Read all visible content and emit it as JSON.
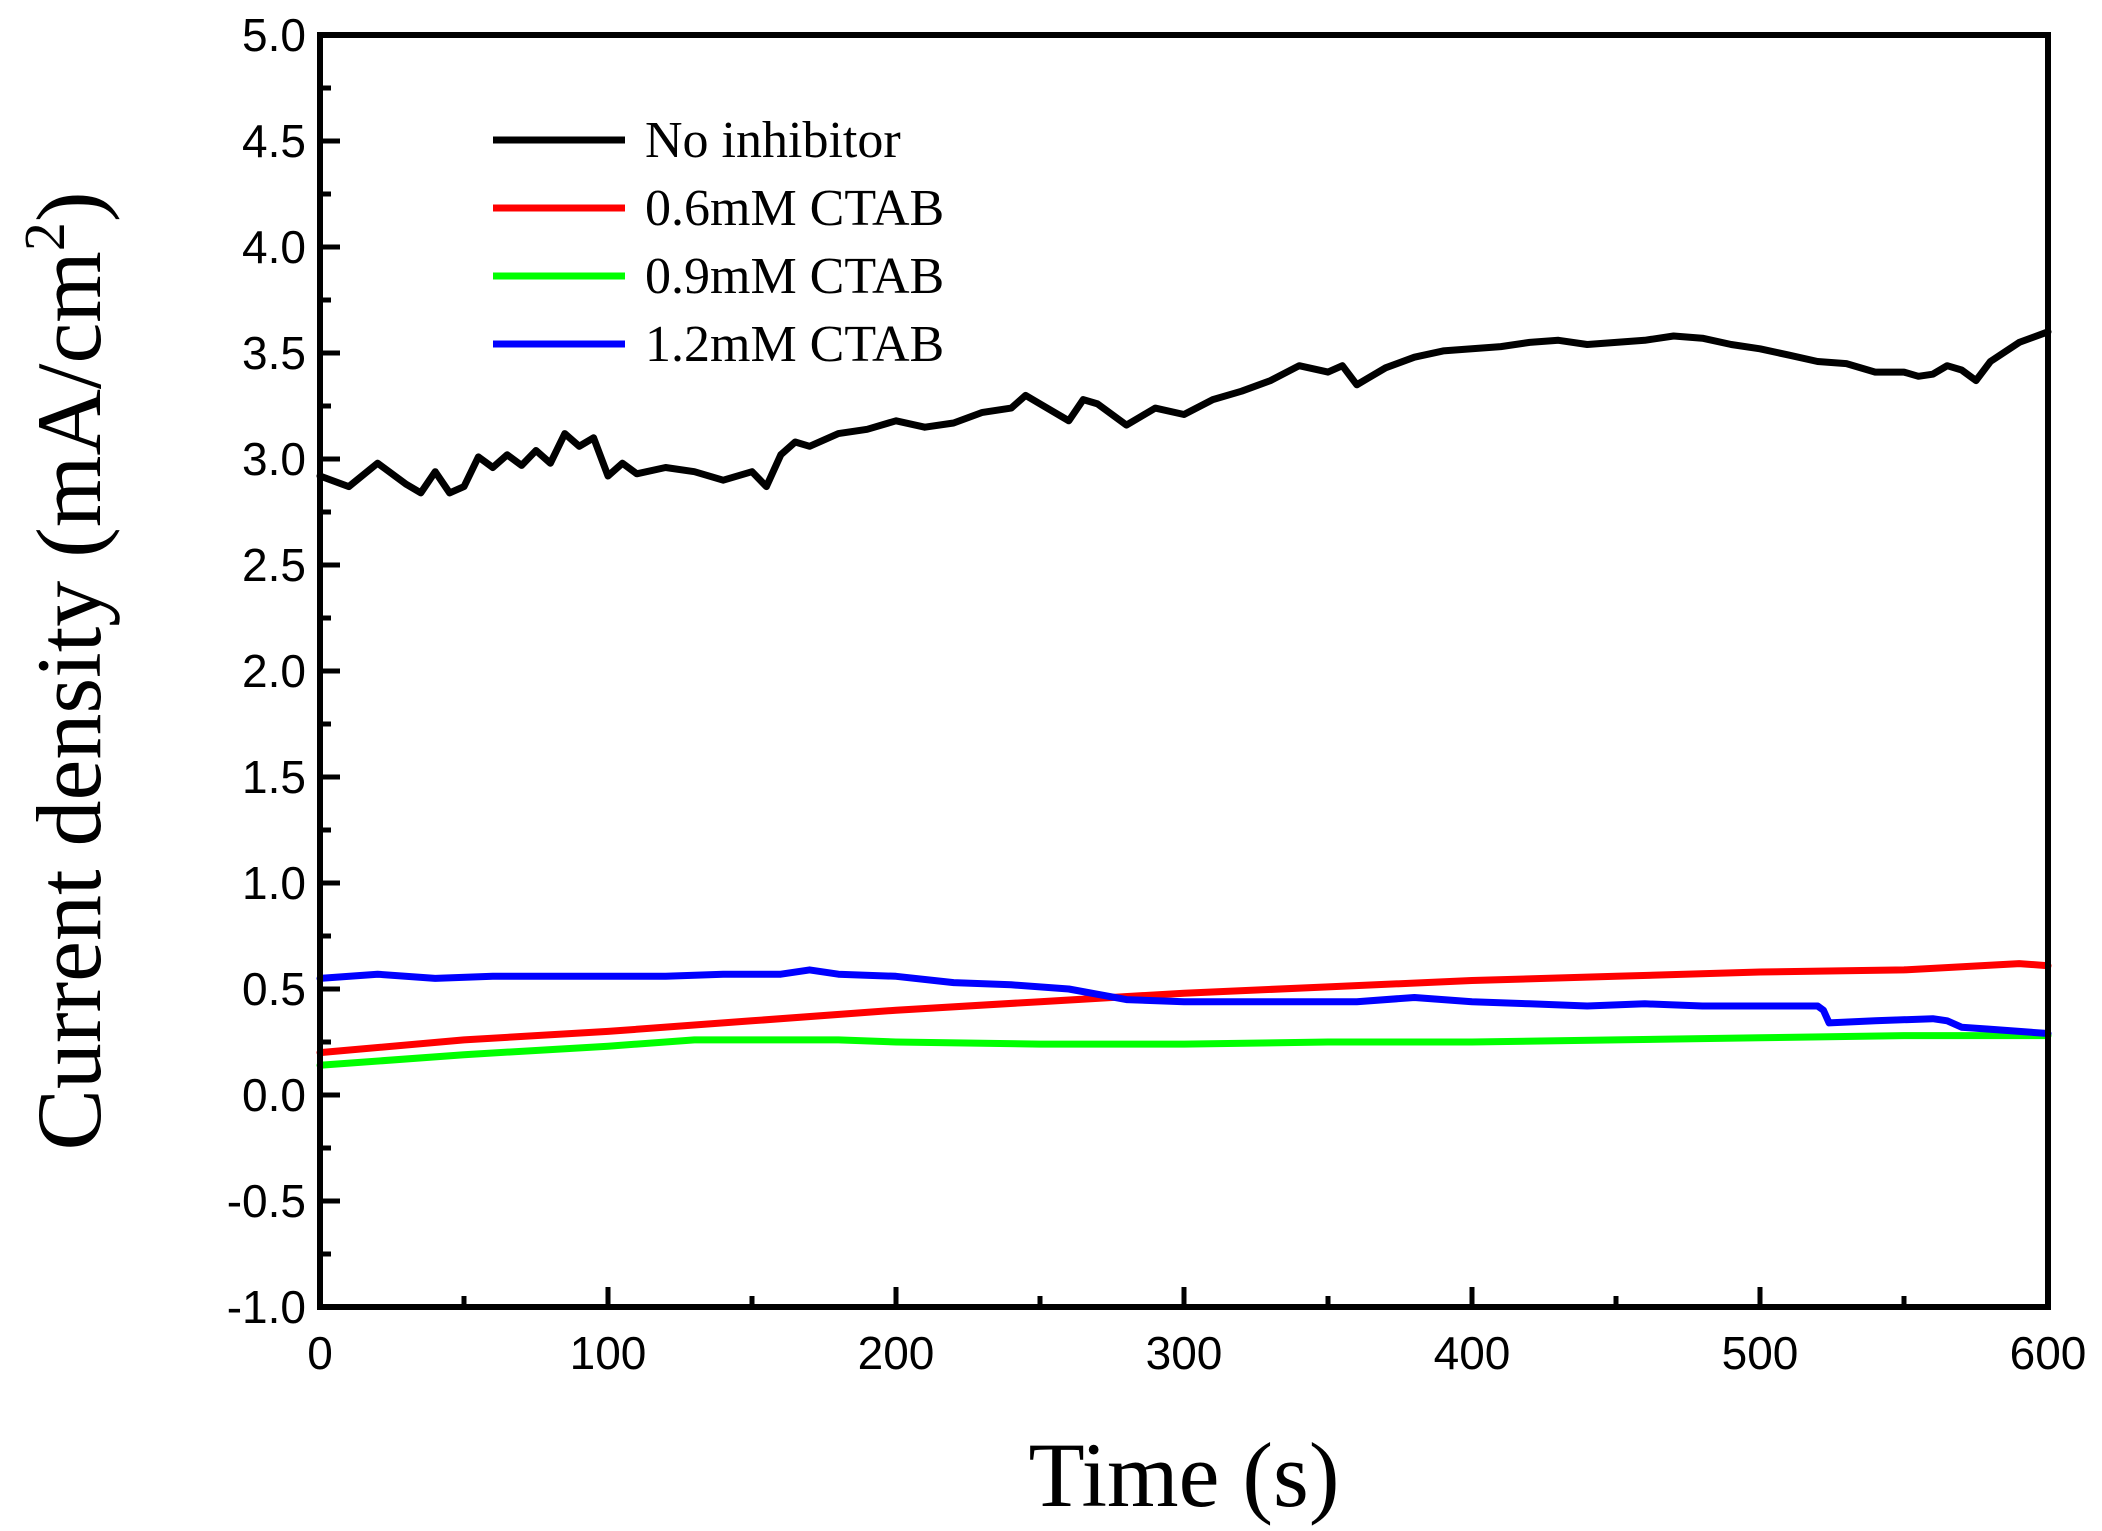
{
  "chart_data": {
    "type": "line",
    "xlabel": "Time (s)",
    "ylabel_main": "Current density (mA/cm",
    "ylabel_sup": "2",
    "ylabel_close": ")",
    "xlim": [
      0,
      600
    ],
    "ylim": [
      -1.0,
      5.0
    ],
    "xticks": [
      0,
      100,
      200,
      300,
      400,
      500,
      600
    ],
    "xtick_labels": [
      "0",
      "100",
      "200",
      "300",
      "400",
      "500",
      "600"
    ],
    "yticks": [
      -1.0,
      -0.5,
      0.0,
      0.5,
      1.0,
      1.5,
      2.0,
      2.5,
      3.0,
      3.5,
      4.0,
      4.5,
      5.0
    ],
    "ytick_labels": [
      "-1.0",
      "-0.5",
      "0.0",
      "0.5",
      "1.0",
      "1.5",
      "2.0",
      "2.5",
      "3.0",
      "3.5",
      "4.0",
      "4.5",
      "5.0"
    ],
    "grid": false,
    "legend_position": "top-left",
    "series": [
      {
        "name": "No inhibitor",
        "color": "#000000",
        "x": [
          0,
          10,
          20,
          30,
          35,
          40,
          45,
          50,
          55,
          60,
          65,
          70,
          75,
          80,
          85,
          90,
          95,
          100,
          105,
          110,
          120,
          130,
          140,
          150,
          155,
          160,
          165,
          170,
          180,
          190,
          200,
          210,
          220,
          230,
          240,
          245,
          250,
          260,
          265,
          270,
          280,
          285,
          290,
          300,
          310,
          320,
          330,
          340,
          350,
          355,
          360,
          370,
          380,
          390,
          400,
          410,
          420,
          430,
          440,
          450,
          460,
          470,
          480,
          490,
          500,
          510,
          520,
          530,
          540,
          550,
          555,
          560,
          565,
          570,
          575,
          580,
          590,
          600
        ],
        "y": [
          2.92,
          2.87,
          2.98,
          2.88,
          2.84,
          2.94,
          2.84,
          2.87,
          3.01,
          2.96,
          3.02,
          2.97,
          3.04,
          2.98,
          3.12,
          3.06,
          3.1,
          2.92,
          2.98,
          2.93,
          2.96,
          2.94,
          2.9,
          2.94,
          2.87,
          3.02,
          3.08,
          3.06,
          3.12,
          3.14,
          3.18,
          3.15,
          3.17,
          3.22,
          3.24,
          3.3,
          3.26,
          3.18,
          3.28,
          3.26,
          3.16,
          3.2,
          3.24,
          3.21,
          3.28,
          3.32,
          3.37,
          3.44,
          3.41,
          3.44,
          3.35,
          3.43,
          3.48,
          3.51,
          3.52,
          3.53,
          3.55,
          3.56,
          3.54,
          3.55,
          3.56,
          3.58,
          3.57,
          3.54,
          3.52,
          3.49,
          3.46,
          3.45,
          3.41,
          3.41,
          3.39,
          3.4,
          3.44,
          3.42,
          3.37,
          3.46,
          3.55,
          3.6
        ]
      },
      {
        "name": "0.6mM CTAB",
        "color": "#ff0000",
        "x": [
          0,
          50,
          100,
          150,
          200,
          250,
          300,
          350,
          400,
          450,
          500,
          550,
          590,
          600
        ],
        "y": [
          0.2,
          0.26,
          0.3,
          0.35,
          0.4,
          0.44,
          0.48,
          0.51,
          0.54,
          0.56,
          0.58,
          0.59,
          0.62,
          0.61
        ]
      },
      {
        "name": "0.9mM CTAB",
        "color": "#00ff00",
        "x": [
          0,
          50,
          100,
          130,
          150,
          180,
          200,
          250,
          300,
          350,
          400,
          450,
          500,
          550,
          600
        ],
        "y": [
          0.14,
          0.19,
          0.23,
          0.26,
          0.26,
          0.26,
          0.25,
          0.24,
          0.24,
          0.25,
          0.25,
          0.26,
          0.27,
          0.28,
          0.28
        ]
      },
      {
        "name": "1.2mM CTAB",
        "color": "#0000ff",
        "x": [
          0,
          20,
          40,
          60,
          80,
          100,
          120,
          140,
          160,
          170,
          180,
          200,
          220,
          240,
          260,
          280,
          300,
          320,
          340,
          360,
          380,
          400,
          420,
          440,
          460,
          480,
          500,
          520,
          522,
          524,
          540,
          560,
          565,
          570,
          580,
          590,
          600
        ],
        "y": [
          0.55,
          0.57,
          0.55,
          0.56,
          0.56,
          0.56,
          0.56,
          0.57,
          0.57,
          0.59,
          0.57,
          0.56,
          0.53,
          0.52,
          0.5,
          0.45,
          0.44,
          0.44,
          0.44,
          0.44,
          0.46,
          0.44,
          0.43,
          0.42,
          0.43,
          0.42,
          0.42,
          0.42,
          0.4,
          0.34,
          0.35,
          0.36,
          0.35,
          0.32,
          0.31,
          0.3,
          0.29
        ]
      }
    ]
  }
}
